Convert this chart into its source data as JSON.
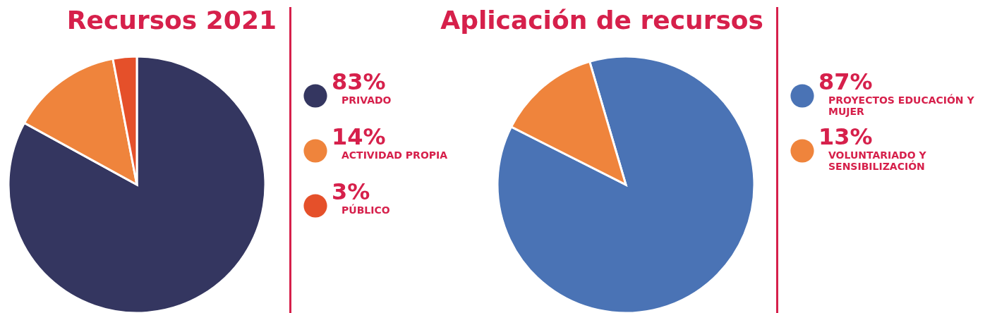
{
  "chart_data": [
    {
      "type": "pie",
      "title": "Recursos 2021",
      "categories": [
        "PRIVADO",
        "ACTIVIDAD PROPIA",
        "PÚBLICO"
      ],
      "values": [
        83,
        14,
        3
      ],
      "colors": [
        "#343660",
        "#ef843c",
        "#e5502a"
      ],
      "value_labels": [
        "83%",
        "14%",
        "3%"
      ],
      "legend": "right"
    },
    {
      "type": "pie",
      "title": "Aplicación de recursos",
      "categories": [
        "PROYECTOS EDUCACIÓN Y MUJER",
        "VOLUNTARIADO Y SENSIBILIZACIÓN"
      ],
      "values": [
        87,
        13
      ],
      "colors": [
        "#4a73b5",
        "#ef843c"
      ],
      "value_labels": [
        "87%",
        "13%"
      ],
      "legend": "right"
    }
  ]
}
